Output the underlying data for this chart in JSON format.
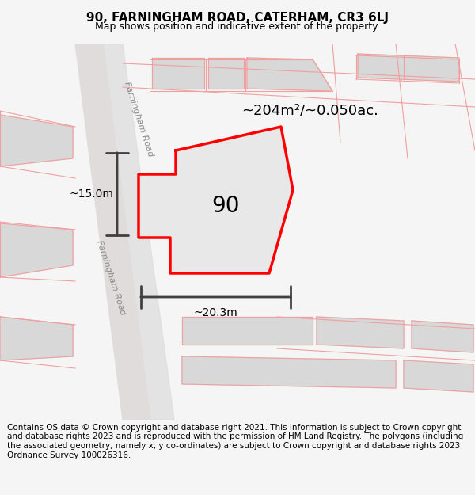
{
  "title": "90, FARNINGHAM ROAD, CATERHAM, CR3 6LJ",
  "subtitle": "Map shows position and indicative extent of the property.",
  "footer": "Contains OS data © Crown copyright and database right 2021. This information is subject to Crown copyright and database rights 2023 and is reproduced with the permission of HM Land Registry. The polygons (including the associated geometry, namely x, y co-ordinates) are subject to Crown copyright and database rights 2023 Ordnance Survey 100026316.",
  "area_label": "~204m²/~0.050ac.",
  "width_label": "~20.3m",
  "height_label": "~15.0m",
  "number_label": "90",
  "road_label": "Farningham Road",
  "road_label2": "Farningham Road",
  "bg_color": "#f5f5f5",
  "map_bg": "#f0efed",
  "plot_color": "#e8e8e8",
  "road_color": "#d8d8d8",
  "outline_color": "#ff0000",
  "dim_line_color": "#404040",
  "grid_line_color": "#f0a0a0",
  "footer_bg": "#ffffff",
  "title_fontsize": 11,
  "subtitle_fontsize": 9,
  "footer_fontsize": 7.5
}
